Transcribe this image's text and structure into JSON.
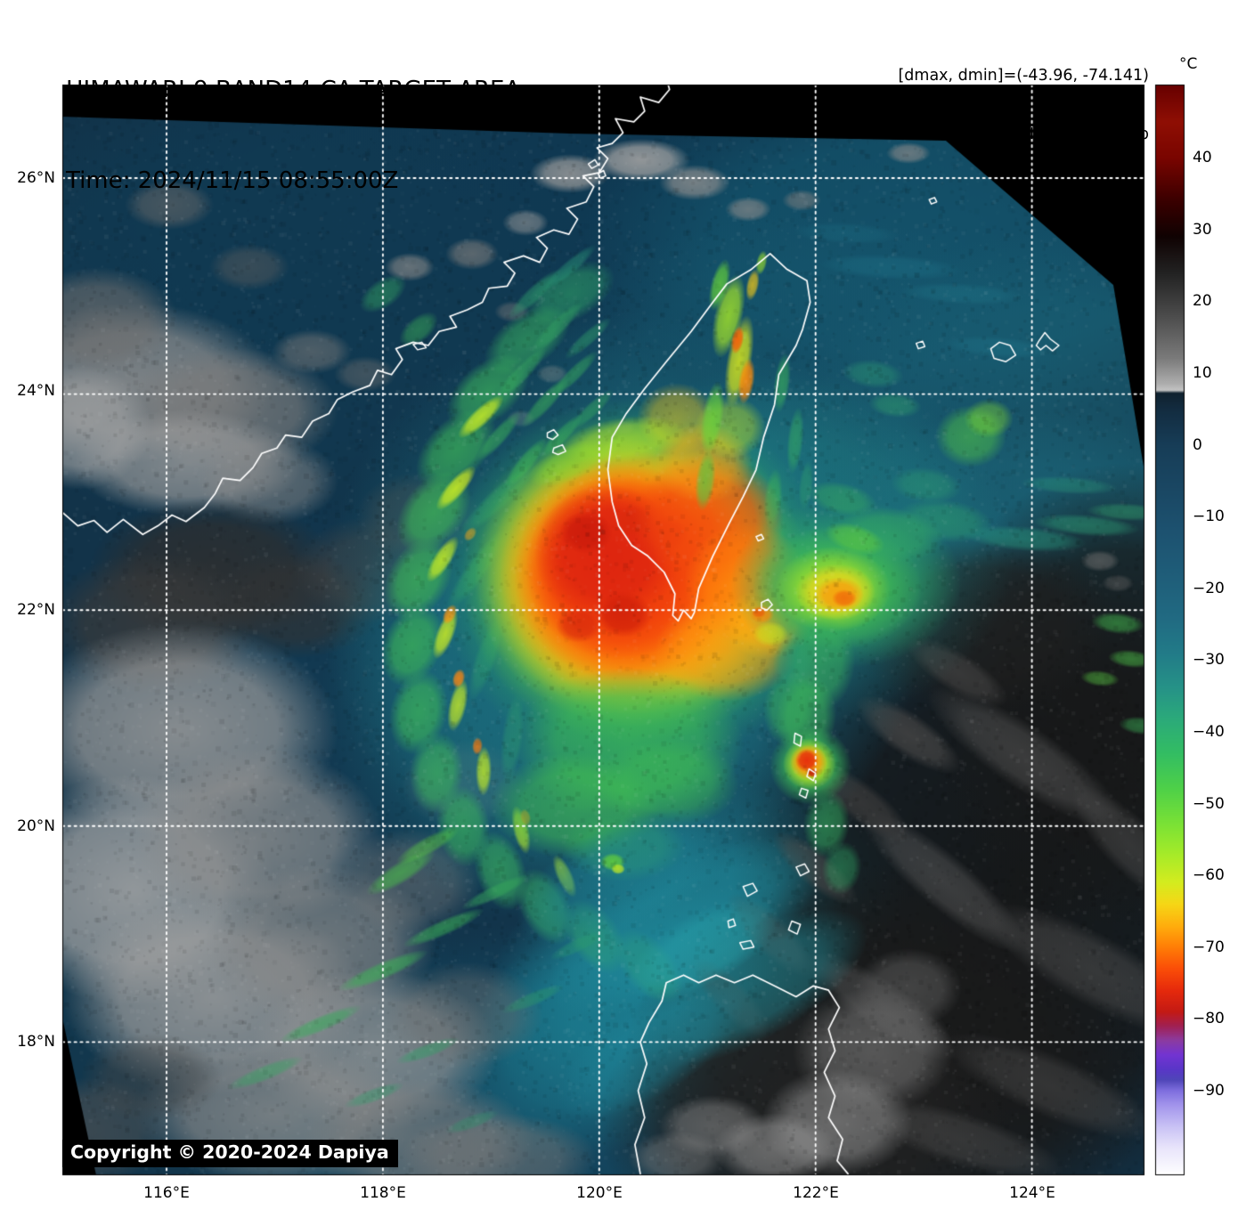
{
  "header": {
    "title": "HIMAWARI-9 BAND14-CA TARGET AREA",
    "time_line": "Time: 2024/11/15 08:55:00Z",
    "stats_line": "[dmax, dmin]=(-43.96, -74.141)",
    "storm_line": "27W.USAGI | 70kt, 977mb"
  },
  "colorbar": {
    "unit": "°C",
    "ticks": [
      {
        "value": 40,
        "label": "40"
      },
      {
        "value": 30,
        "label": "30"
      },
      {
        "value": 20,
        "label": "20"
      },
      {
        "value": 10,
        "label": "10"
      },
      {
        "value": 0,
        "label": "0"
      },
      {
        "value": -10,
        "label": "−10"
      },
      {
        "value": -20,
        "label": "−20"
      },
      {
        "value": -30,
        "label": "−30"
      },
      {
        "value": -40,
        "label": "−40"
      },
      {
        "value": -50,
        "label": "−50"
      },
      {
        "value": -60,
        "label": "−60"
      },
      {
        "value": -70,
        "label": "−70"
      },
      {
        "value": -80,
        "label": "−80"
      },
      {
        "value": -90,
        "label": "−90"
      }
    ],
    "range_c": [
      50,
      -102
    ],
    "stops": [
      [
        50.2,
        "#670000"
      ],
      [
        45,
        "#8f0f04"
      ],
      [
        40,
        "#7a0500"
      ],
      [
        34,
        "#3a0000"
      ],
      [
        29,
        "#100303"
      ],
      [
        24,
        "#222222"
      ],
      [
        18,
        "#4c4c4c"
      ],
      [
        12,
        "#7b7b7b"
      ],
      [
        8.5,
        "#aeaeae"
      ],
      [
        7.6,
        "#c3c3c3"
      ],
      [
        7.2,
        "#10222f"
      ],
      [
        5,
        "#132c40"
      ],
      [
        0,
        "#173d57"
      ],
      [
        -6,
        "#1a4763"
      ],
      [
        -12,
        "#1d5270"
      ],
      [
        -18,
        "#1f5d79"
      ],
      [
        -24,
        "#216a82"
      ],
      [
        -29,
        "#227b88"
      ],
      [
        -34,
        "#269387"
      ],
      [
        -38,
        "#2ba97b"
      ],
      [
        -43,
        "#33bd63"
      ],
      [
        -48,
        "#4fd148"
      ],
      [
        -53,
        "#7ce235"
      ],
      [
        -57,
        "#a5eb29"
      ],
      [
        -61,
        "#d4ec1f"
      ],
      [
        -64,
        "#f6d716"
      ],
      [
        -67,
        "#ffae0d"
      ],
      [
        -70,
        "#ff7e06"
      ],
      [
        -73,
        "#fb4e08"
      ],
      [
        -76,
        "#e62a0c"
      ],
      [
        -79,
        "#c41a14"
      ],
      [
        -81,
        "#a12052"
      ],
      [
        -83,
        "#8c3ba0"
      ],
      [
        -85,
        "#7334d2"
      ],
      [
        -87,
        "#5a36c8"
      ],
      [
        -88.5,
        "#4f46b8"
      ],
      [
        -90,
        "#7e6ede"
      ],
      [
        -92,
        "#a294ec"
      ],
      [
        -95,
        "#c9c2f5"
      ],
      [
        -98,
        "#e9e5fb"
      ],
      [
        -101.8,
        "#ffffff"
      ]
    ]
  },
  "axes": {
    "lat_ticks": [
      {
        "value_deg_n": 26,
        "label": "26°N"
      },
      {
        "value_deg_n": 24,
        "label": "24°N"
      },
      {
        "value_deg_n": 22,
        "label": "22°N"
      },
      {
        "value_deg_n": 20,
        "label": "20°N"
      },
      {
        "value_deg_n": 18,
        "label": "18°N"
      }
    ],
    "lon_ticks": [
      {
        "value_deg_e": 116,
        "label": "116°E"
      },
      {
        "value_deg_e": 118,
        "label": "118°E"
      },
      {
        "value_deg_e": 120,
        "label": "120°E"
      },
      {
        "value_deg_e": 122,
        "label": "122°E"
      },
      {
        "value_deg_e": 124,
        "label": "124°E"
      }
    ]
  },
  "map": {
    "grid_color": "#ffffff",
    "coastline_color": "#ffffff",
    "offscan_color": "#000000",
    "storm": {
      "designation": "27W",
      "name": "USAGI",
      "intensity_kt": 70,
      "pressure_mb": 977
    }
  },
  "footer": {
    "copyright": "Copyright © 2020-2024 Dapiya"
  }
}
